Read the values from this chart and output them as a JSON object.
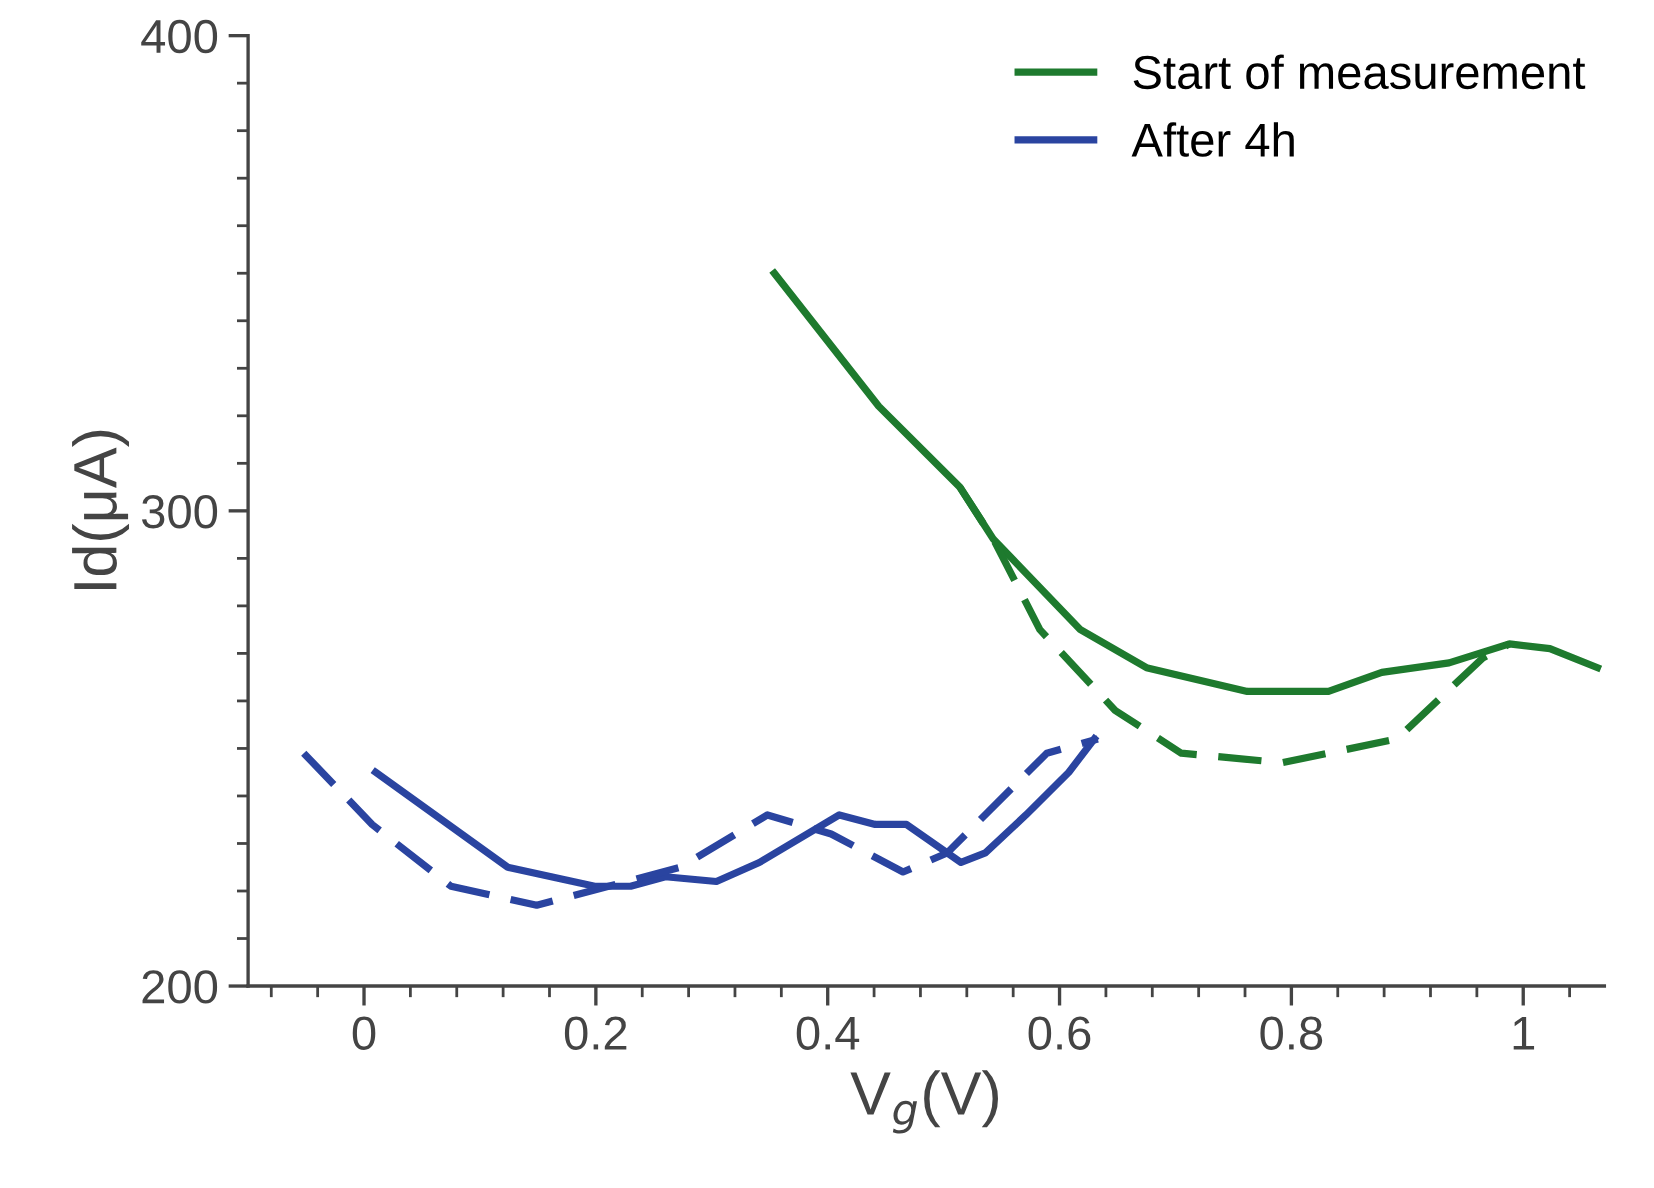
{
  "chart_data": {
    "type": "line",
    "xlabel": "V$_{g}$(V)",
    "ylabel": "Id(μA)",
    "xlim": [
      -0.1,
      1.07
    ],
    "ylim": [
      200,
      400
    ],
    "xticks": [
      0,
      0.2,
      0.4,
      0.6,
      0.8,
      1
    ],
    "yticks": [
      200,
      300,
      400
    ],
    "legend": "top right",
    "grid": false,
    "marker": "none",
    "series": [
      {
        "name": "Start of measurement",
        "color": "#1e7a2e",
        "line_style": "solid",
        "x": [
          0.354,
          0.444,
          0.514,
          0.543,
          0.618,
          0.675,
          0.762,
          0.832,
          0.878,
          0.936,
          0.988,
          1.023,
          1.064
        ],
        "values": [
          350,
          322,
          305,
          294,
          275,
          267,
          262,
          262,
          266,
          268,
          272,
          271,
          267
        ]
      },
      {
        "color": "#1e7a2e",
        "line_style": "dashed",
        "x": [
          0.514,
          0.543,
          0.583,
          0.648,
          0.705,
          0.792,
          0.891,
          0.965,
          0.988
        ],
        "values": [
          305,
          294,
          275,
          258,
          249,
          247,
          252,
          269,
          272
        ]
      },
      {
        "name": "After 4h",
        "color": "#2a44a0",
        "line_style": "solid",
        "x": [
          0.01,
          0.124,
          0.199,
          0.23,
          0.26,
          0.304,
          0.341,
          0.41,
          0.441,
          0.468,
          0.515,
          0.536,
          0.571,
          0.608,
          0.63
        ],
        "values": [
          245,
          225,
          221,
          221,
          223,
          222,
          226,
          236,
          234,
          234,
          226,
          228,
          236,
          245,
          252
        ]
      },
      {
        "color": "#2a44a0",
        "line_style": "dashed",
        "x": [
          -0.052,
          0.007,
          0.075,
          0.149,
          0.211,
          0.273,
          0.348,
          0.403,
          0.465,
          0.503,
          0.589,
          0.633
        ],
        "values": [
          249,
          234,
          221,
          217,
          221,
          225,
          236,
          232,
          224,
          228,
          249,
          252
        ]
      }
    ]
  }
}
